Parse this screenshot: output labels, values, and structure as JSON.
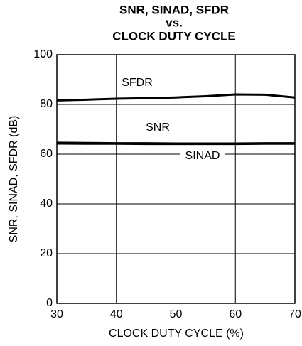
{
  "chart_data": {
    "type": "line",
    "title": [
      "SNR, SINAD, SFDR",
      "vs.",
      "CLOCK DUTY CYCLE"
    ],
    "xlabel": "CLOCK DUTY CYCLE  (%)",
    "ylabel": "SNR, SINAD, SFDR (dB)",
    "x": [
      30,
      35,
      40,
      45,
      50,
      55,
      60,
      65,
      70
    ],
    "series": [
      {
        "name": "SFDR",
        "color": "#000000",
        "values": [
          81.6,
          81.9,
          82.3,
          82.5,
          82.8,
          83.3,
          84.0,
          83.9,
          82.8
        ]
      },
      {
        "name": "SNR",
        "color": "#000000",
        "values": [
          64.6,
          64.5,
          64.4,
          64.4,
          64.3,
          64.3,
          64.3,
          64.4,
          64.4
        ]
      },
      {
        "name": "SINAD",
        "color": "#000000",
        "values": [
          64.3,
          64.2,
          64.2,
          64.1,
          64.1,
          64.1,
          64.1,
          64.2,
          64.2
        ]
      }
    ],
    "xlim": [
      30,
      70
    ],
    "xticks": [
      30,
      40,
      50,
      60,
      70
    ],
    "ylim": [
      0,
      100
    ],
    "yticks": [
      0,
      20,
      40,
      60,
      80,
      100
    ],
    "grid": true
  }
}
